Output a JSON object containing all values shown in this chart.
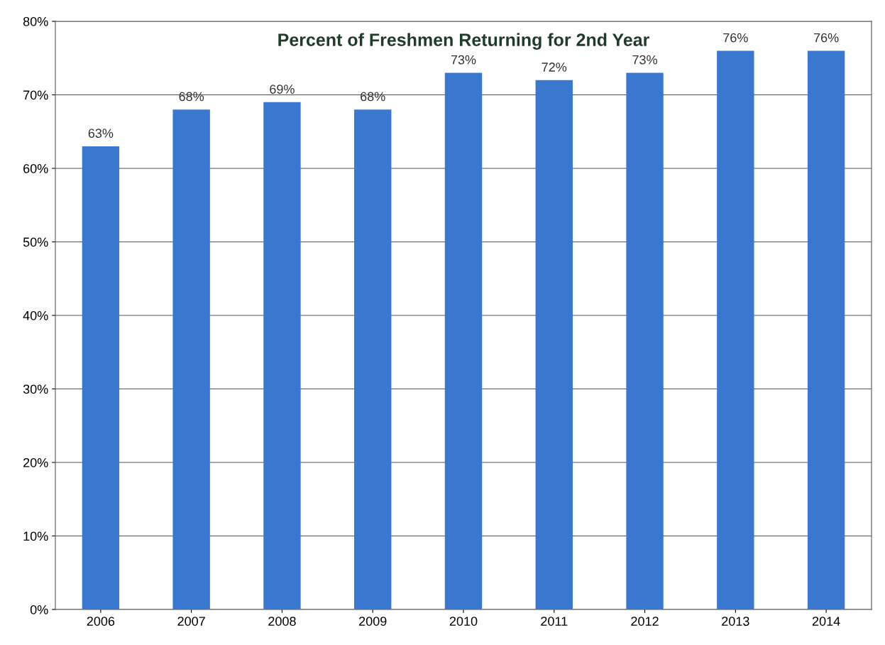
{
  "chart_data": {
    "type": "bar",
    "title": "Percent of Freshmen Returning for 2nd Year",
    "categories": [
      "2006",
      "2007",
      "2008",
      "2009",
      "2010",
      "2011",
      "2012",
      "2013",
      "2014"
    ],
    "values": [
      63,
      68,
      69,
      68,
      73,
      72,
      73,
      76,
      76
    ],
    "value_labels": [
      "63%",
      "68%",
      "69%",
      "68%",
      "73%",
      "72%",
      "73%",
      "76%",
      "76%"
    ],
    "color": "#3a78d0",
    "ylim": [
      0,
      80
    ],
    "yticks": [
      {
        "value": 0,
        "label": "0%"
      },
      {
        "value": 10,
        "label": "10%"
      },
      {
        "value": 20,
        "label": "20%"
      },
      {
        "value": 30,
        "label": "30%"
      },
      {
        "value": 40,
        "label": "40%"
      },
      {
        "value": 50,
        "label": "50%"
      },
      {
        "value": 60,
        "label": "60%"
      },
      {
        "value": 70,
        "label": "70%"
      },
      {
        "value": 80,
        "label": "80%"
      }
    ],
    "grid": "y",
    "legend": false
  }
}
